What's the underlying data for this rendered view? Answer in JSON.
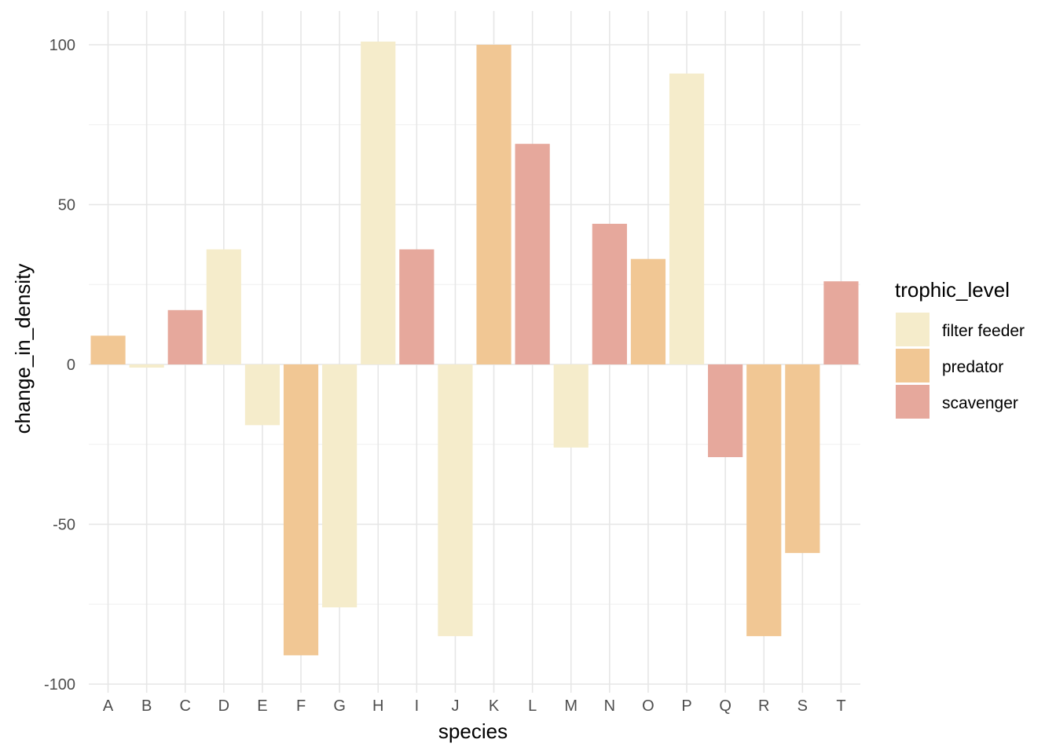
{
  "chart_data": {
    "type": "bar",
    "xlabel": "species",
    "ylabel": "change_in_density",
    "ylim": [
      -100,
      100
    ],
    "y_ticks": [
      -100,
      -50,
      0,
      50,
      100
    ],
    "y_tick_labels": [
      "-100",
      "-50",
      "0",
      "50",
      "100"
    ],
    "grid": true,
    "legend": {
      "title": "trophic_level",
      "position": "right",
      "entries": [
        {
          "label": "filter feeder",
          "color": "#F5ECCB"
        },
        {
          "label": "predator",
          "color": "#F1C794"
        },
        {
          "label": "scavenger",
          "color": "#E6A89C"
        }
      ]
    },
    "categories": [
      "A",
      "B",
      "C",
      "D",
      "E",
      "F",
      "G",
      "H",
      "I",
      "J",
      "K",
      "L",
      "M",
      "N",
      "O",
      "P",
      "Q",
      "R",
      "S",
      "T"
    ],
    "values": [
      9,
      -1,
      17,
      36,
      -19,
      -91,
      -76,
      101,
      36,
      -85,
      100,
      69,
      -26,
      44,
      33,
      91,
      -29,
      -85,
      -59,
      26
    ],
    "groups": [
      "predator",
      "filter feeder",
      "scavenger",
      "filter feeder",
      "filter feeder",
      "predator",
      "filter feeder",
      "filter feeder",
      "scavenger",
      "filter feeder",
      "predator",
      "scavenger",
      "filter feeder",
      "scavenger",
      "predator",
      "filter feeder",
      "scavenger",
      "predator",
      "predator",
      "scavenger"
    ]
  }
}
